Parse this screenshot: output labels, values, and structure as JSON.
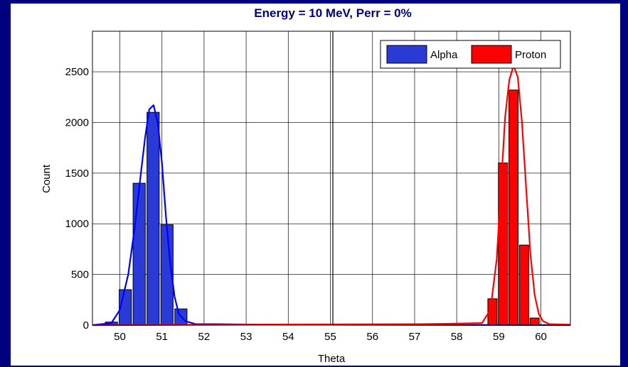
{
  "chart_data": {
    "type": "bar",
    "title": "Energy = 10 MeV,  Perr = 0%",
    "xlabel": "Theta",
    "ylabel": "Count",
    "xlim": [
      49.35,
      60.7
    ],
    "ylim": [
      0,
      2900
    ],
    "xticks": [
      50,
      51,
      52,
      53,
      54,
      55,
      56,
      57,
      58,
      59,
      60
    ],
    "yticks": [
      0,
      500,
      1000,
      1500,
      2000,
      2500
    ],
    "grid": true,
    "legend": "top-right",
    "colors": {
      "alpha": "#2a3ad6",
      "proton": "#ff0000",
      "alpha_line": "#0000ff",
      "proton_line": "#ff0000"
    },
    "series": [
      {
        "name": "Alpha",
        "bar_x": [
          49.8,
          50.13,
          50.46,
          50.79,
          51.12,
          51.45
        ],
        "bar_values": [
          30,
          350,
          1400,
          2100,
          990,
          160
        ],
        "fit_x": [
          49.35,
          49.8,
          50.0,
          50.2,
          50.35,
          50.5,
          50.6,
          50.7,
          50.8,
          50.9,
          51.0,
          51.1,
          51.2,
          51.3,
          51.4,
          51.55,
          51.8,
          52.3,
          53.3,
          60.7
        ],
        "fit_values": [
          0,
          20,
          150,
          500,
          950,
          1500,
          1850,
          2130,
          2170,
          2000,
          1600,
          1050,
          600,
          280,
          110,
          40,
          10,
          10,
          5,
          0
        ]
      },
      {
        "name": "Proton",
        "bar_x": [
          58.85,
          59.1,
          59.35,
          59.6,
          59.85,
          60.1
        ],
        "bar_values": [
          260,
          1600,
          2320,
          790,
          70,
          0
        ],
        "fit_x": [
          49.35,
          57.1,
          58.0,
          58.6,
          58.8,
          58.95,
          59.05,
          59.15,
          59.25,
          59.35,
          59.45,
          59.55,
          59.65,
          59.75,
          59.85,
          59.95,
          60.05,
          60.2,
          60.7
        ],
        "fit_values": [
          0,
          10,
          15,
          20,
          150,
          650,
          1350,
          2050,
          2420,
          2560,
          2450,
          2000,
          1350,
          700,
          300,
          110,
          40,
          10,
          5
        ]
      }
    ]
  }
}
